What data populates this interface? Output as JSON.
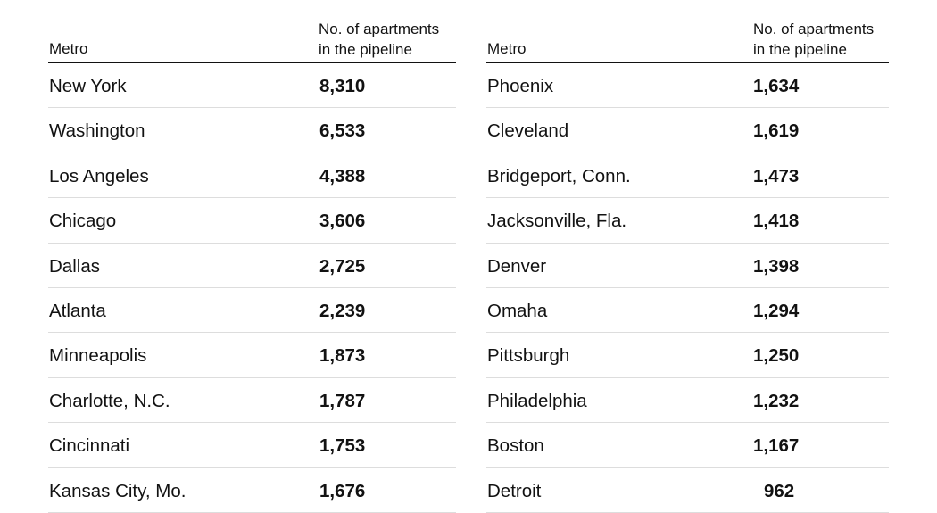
{
  "chart_data": {
    "type": "table",
    "columns": [
      "Metro",
      "No. of apartments in the pipeline"
    ],
    "header": {
      "metro": "Metro",
      "value_line1": "No. of apartments",
      "value_line2": "in the pipeline"
    },
    "left_rows": [
      {
        "metro": "New York",
        "value": "8,310"
      },
      {
        "metro": "Washington",
        "value": "6,533"
      },
      {
        "metro": "Los Angeles",
        "value": "4,388"
      },
      {
        "metro": "Chicago",
        "value": "3,606"
      },
      {
        "metro": "Dallas",
        "value": "2,725"
      },
      {
        "metro": "Atlanta",
        "value": "2,239"
      },
      {
        "metro": "Minneapolis",
        "value": "1,873"
      },
      {
        "metro": "Charlotte, N.C.",
        "value": "1,787"
      },
      {
        "metro": "Cincinnati",
        "value": "1,753"
      },
      {
        "metro": "Kansas City, Mo.",
        "value": "1,676"
      }
    ],
    "right_rows": [
      {
        "metro": "Phoenix",
        "value": "1,634"
      },
      {
        "metro": "Cleveland",
        "value": "1,619"
      },
      {
        "metro": "Bridgeport, Conn.",
        "value": "1,473"
      },
      {
        "metro": "Jacksonville, Fla.",
        "value": "1,418"
      },
      {
        "metro": "Denver",
        "value": "1,398"
      },
      {
        "metro": "Omaha",
        "value": "1,294"
      },
      {
        "metro": "Pittsburgh",
        "value": "1,250"
      },
      {
        "metro": "Philadelphia",
        "value": "1,232"
      },
      {
        "metro": "Boston",
        "value": "1,167"
      },
      {
        "metro": "Detroit",
        "value": "962"
      }
    ]
  }
}
